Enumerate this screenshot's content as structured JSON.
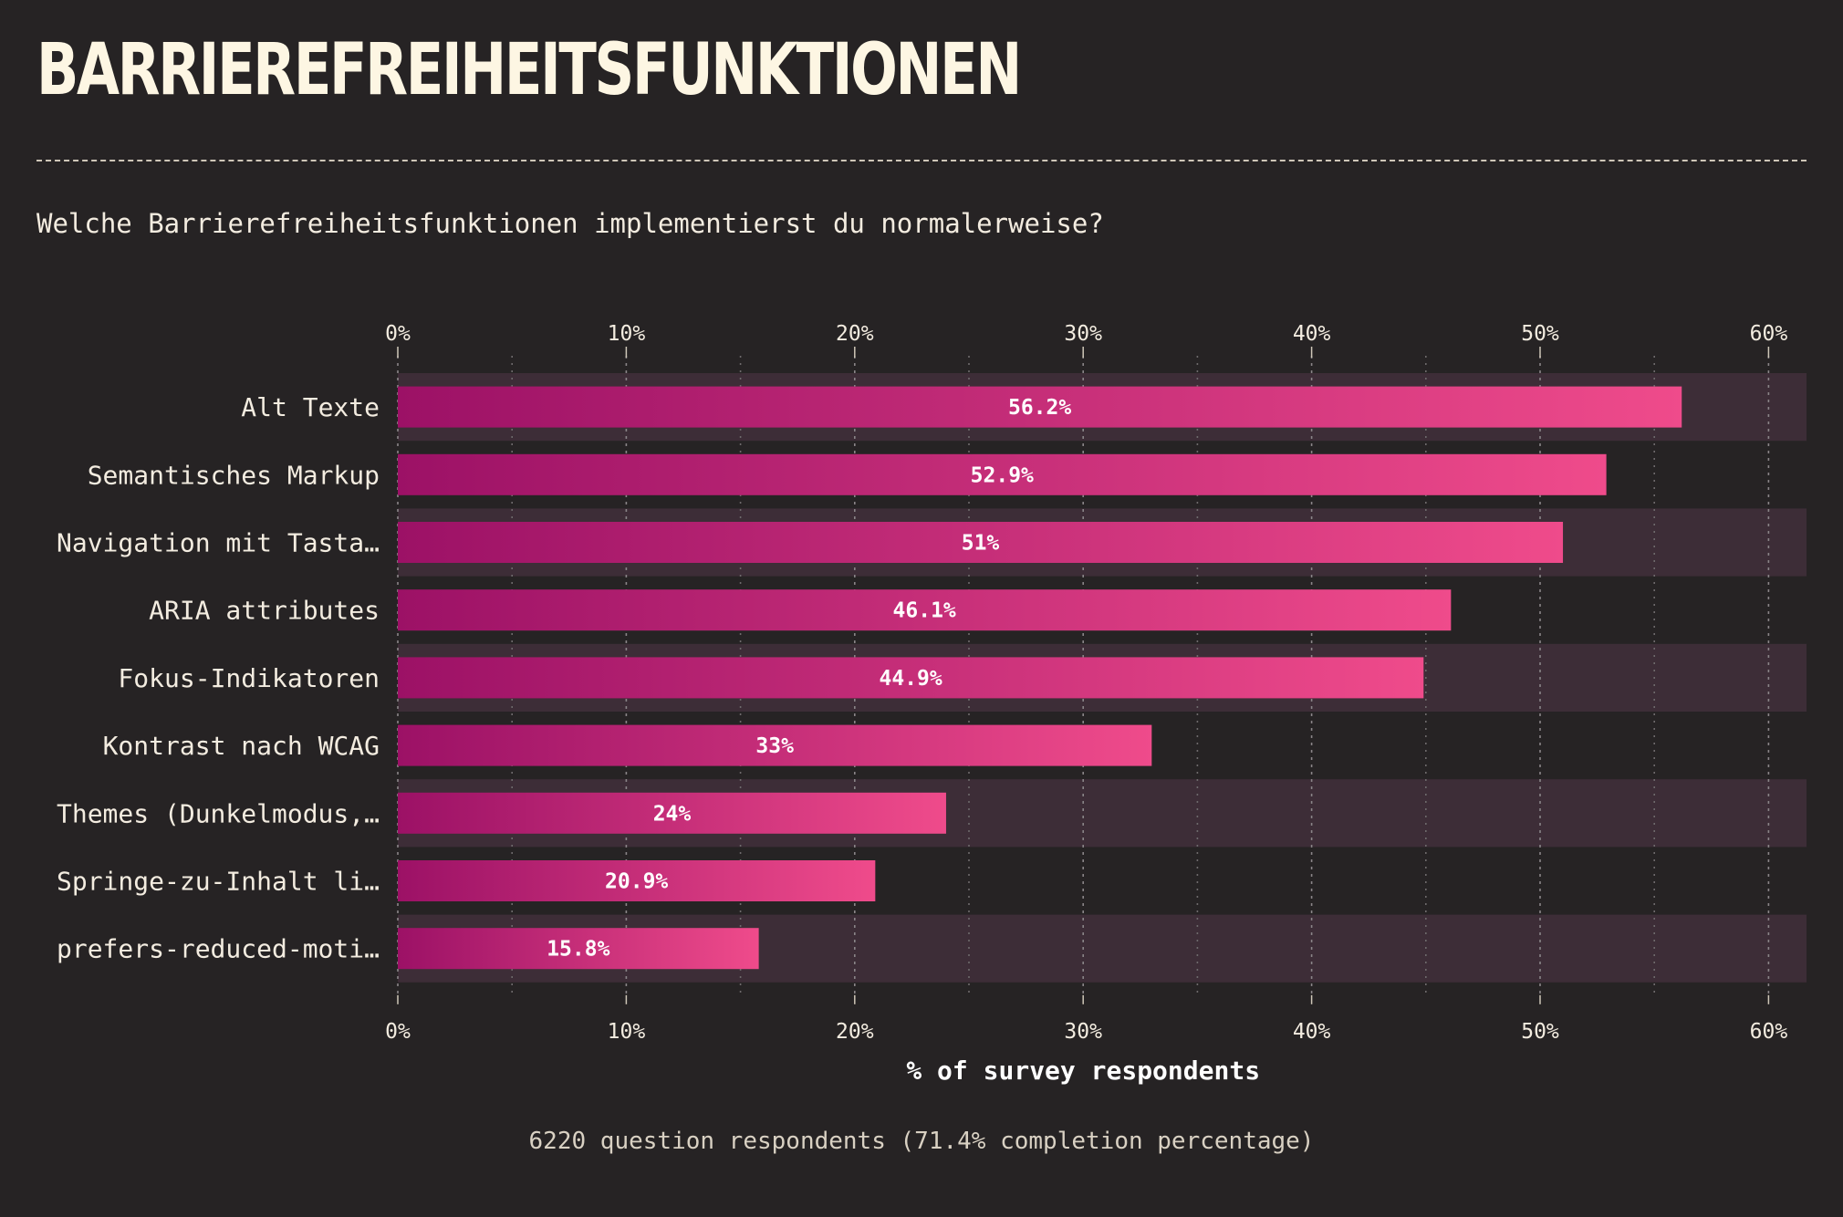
{
  "title": "BARRIEREFREIHEITSFUNKTIONEN",
  "question": "Welche Barrierefreiheitsfunktionen implementierst du normalerweise?",
  "footer": "6220 question respondents (71.4% completion percentage)",
  "colors": {
    "background": "#262324",
    "row_band": "#3d2d37",
    "bar_start": "#9c1166",
    "bar_end": "#ef4b8b",
    "text": "#f3ece0"
  },
  "chart_data": {
    "type": "bar",
    "orientation": "horizontal",
    "categories": [
      "Alt Texte",
      "Semantisches Markup",
      "Navigation mit Tasta…",
      "ARIA attributes",
      "Fokus-Indikatoren",
      "Kontrast nach WCAG",
      "Themes (Dunkelmodus,…",
      "Springe-zu-Inhalt li…",
      "prefers-reduced-moti…"
    ],
    "values": [
      56.2,
      52.9,
      51,
      46.1,
      44.9,
      33,
      24,
      20.9,
      15.8
    ],
    "value_labels": [
      "56.2%",
      "52.9%",
      "51%",
      "46.1%",
      "44.9%",
      "33%",
      "24%",
      "20.9%",
      "15.8%"
    ],
    "xlim": [
      0,
      60
    ],
    "x_ticks": [
      "0%",
      "10%",
      "20%",
      "30%",
      "40%",
      "50%",
      "60%"
    ],
    "x_tick_values": [
      0,
      10,
      20,
      30,
      40,
      50,
      60
    ],
    "xlabel": "% of survey respondents",
    "grid": true
  }
}
